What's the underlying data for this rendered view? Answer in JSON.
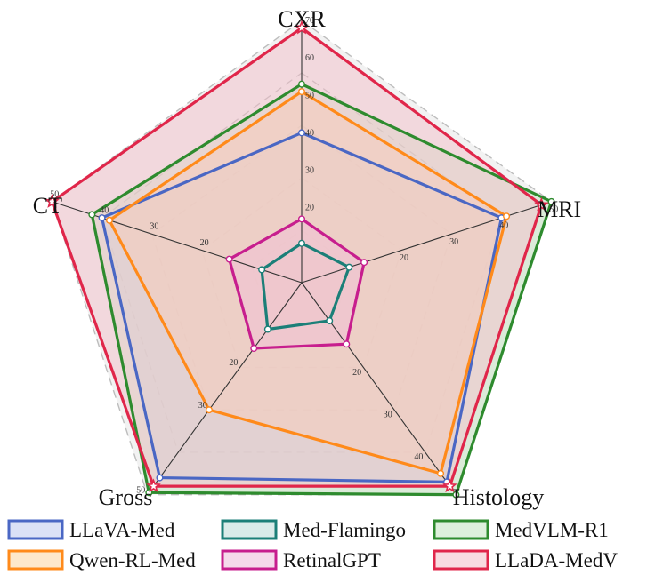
{
  "chart_data": {
    "type": "radar",
    "axes": [
      "CXR",
      "MRI",
      "Histology",
      "Gross",
      "CT"
    ],
    "axis_ranges": {
      "CXR": [
        0,
        70
      ],
      "MRI": [
        0,
        50
      ],
      "Histology": [
        0,
        50
      ],
      "Gross": [
        0,
        50
      ],
      "CT": [
        0,
        50
      ]
    },
    "ticks": {
      "CXR": [
        20,
        30,
        40,
        50,
        60,
        70
      ],
      "MRI": [
        20,
        30,
        40,
        50
      ],
      "Histology": [
        20,
        30,
        40
      ],
      "Gross": [
        20,
        30,
        50
      ],
      "CT": [
        20,
        30,
        40,
        50
      ]
    },
    "series": [
      {
        "name": "LLaVA-Med",
        "color": "#4a67c4",
        "fill": "#c3cdf0",
        "marker": "circle",
        "values": [
          40,
          40,
          47,
          46,
          40
        ]
      },
      {
        "name": "Med-Flamingo",
        "color": "#1b7f78",
        "fill": "#bfdedb",
        "marker": "circle",
        "values": [
          10.5,
          9.5,
          9,
          11,
          8
        ]
      },
      {
        "name": "MedVLM-R1",
        "color": "#2e8b2e",
        "fill": "#c8e6c4",
        "marker": "circle",
        "values": [
          53,
          50,
          50,
          49.5,
          42
        ]
      },
      {
        "name": "Qwen-RL-Med",
        "color": "#ff8a1a",
        "fill": "#fbd9a8",
        "marker": "circle",
        "values": [
          51,
          41,
          45,
          30,
          38.5
        ]
      },
      {
        "name": "RetinalGPT",
        "color": "#c71e8e",
        "fill": "#efc0de",
        "marker": "circle",
        "values": [
          17,
          12.5,
          14.5,
          15.5,
          14.5
        ]
      },
      {
        "name": "LLaDA-MedV",
        "color": "#e0264a",
        "fill": "#f3c3cc",
        "marker": "star",
        "values": [
          68,
          48,
          48,
          48,
          50
        ]
      }
    ],
    "legend_position": "bottom"
  }
}
